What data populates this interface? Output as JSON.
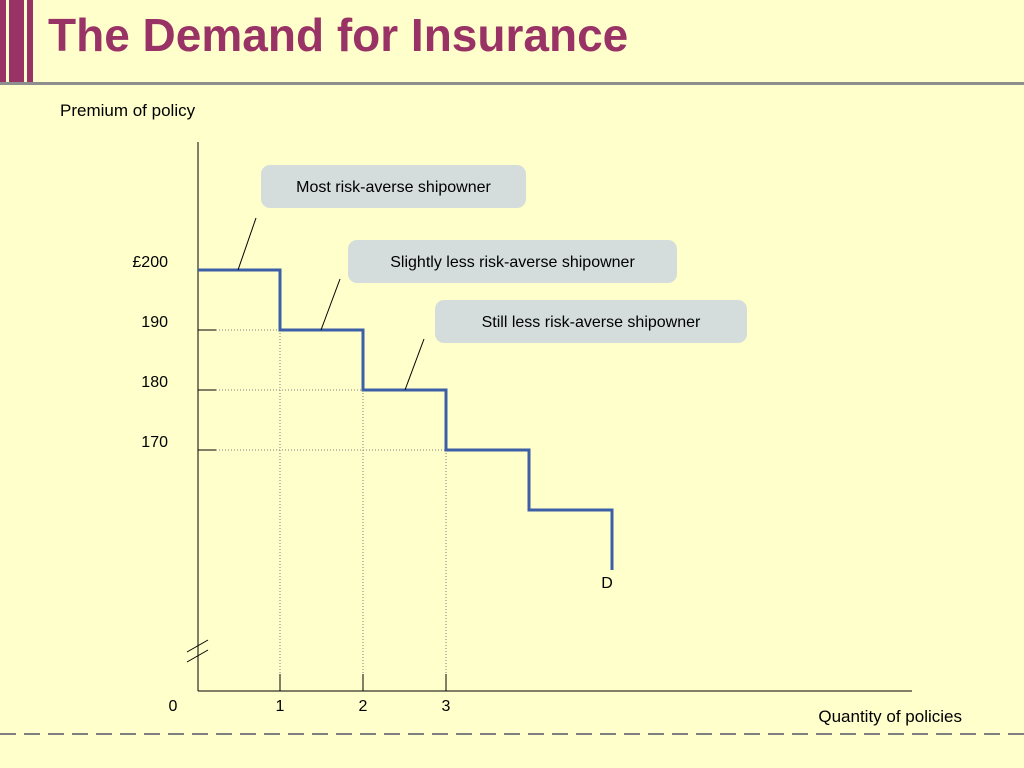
{
  "slide": {
    "title": "The Demand for Insurance"
  },
  "chart_data": {
    "type": "line",
    "step": true,
    "ylabel": "Premium of policy",
    "xlabel": "Quantity of policies",
    "y_ticks": [
      {
        "label": "£200",
        "value": 200
      },
      {
        "label": "190",
        "value": 190
      },
      {
        "label": "180",
        "value": 180
      },
      {
        "label": "170",
        "value": 170
      }
    ],
    "x_ticks": [
      {
        "label": "0",
        "value": 0
      },
      {
        "label": "1",
        "value": 1
      },
      {
        "label": "2",
        "value": 2
      },
      {
        "label": "3",
        "value": 3
      }
    ],
    "ylim": [
      150,
      210
    ],
    "xlim": [
      0,
      7.6
    ],
    "y_axis_break": true,
    "series": [
      {
        "name": "D",
        "color": "#3C5FA8",
        "steps": [
          {
            "x_from": 0,
            "x_to": 1,
            "y": 200
          },
          {
            "x_from": 1,
            "x_to": 2,
            "y": 190
          },
          {
            "x_from": 2,
            "x_to": 3,
            "y": 180
          },
          {
            "x_from": 3,
            "x_to": 4,
            "y": 170
          },
          {
            "x_from": 4,
            "x_to": 5,
            "y": 160
          }
        ],
        "end_drop_to_y": 155
      }
    ],
    "annotations": [
      {
        "text": "Most risk-averse shipowner",
        "points_to": {
          "x": 0.5,
          "y": 200
        }
      },
      {
        "text": "Slightly less risk-averse shipowner",
        "points_to": {
          "x": 1.5,
          "y": 190
        }
      },
      {
        "text": "Still less risk-averse shipowner",
        "points_to": {
          "x": 2.5,
          "y": 180
        }
      }
    ],
    "grid": false,
    "guide_lines": "dotted"
  }
}
